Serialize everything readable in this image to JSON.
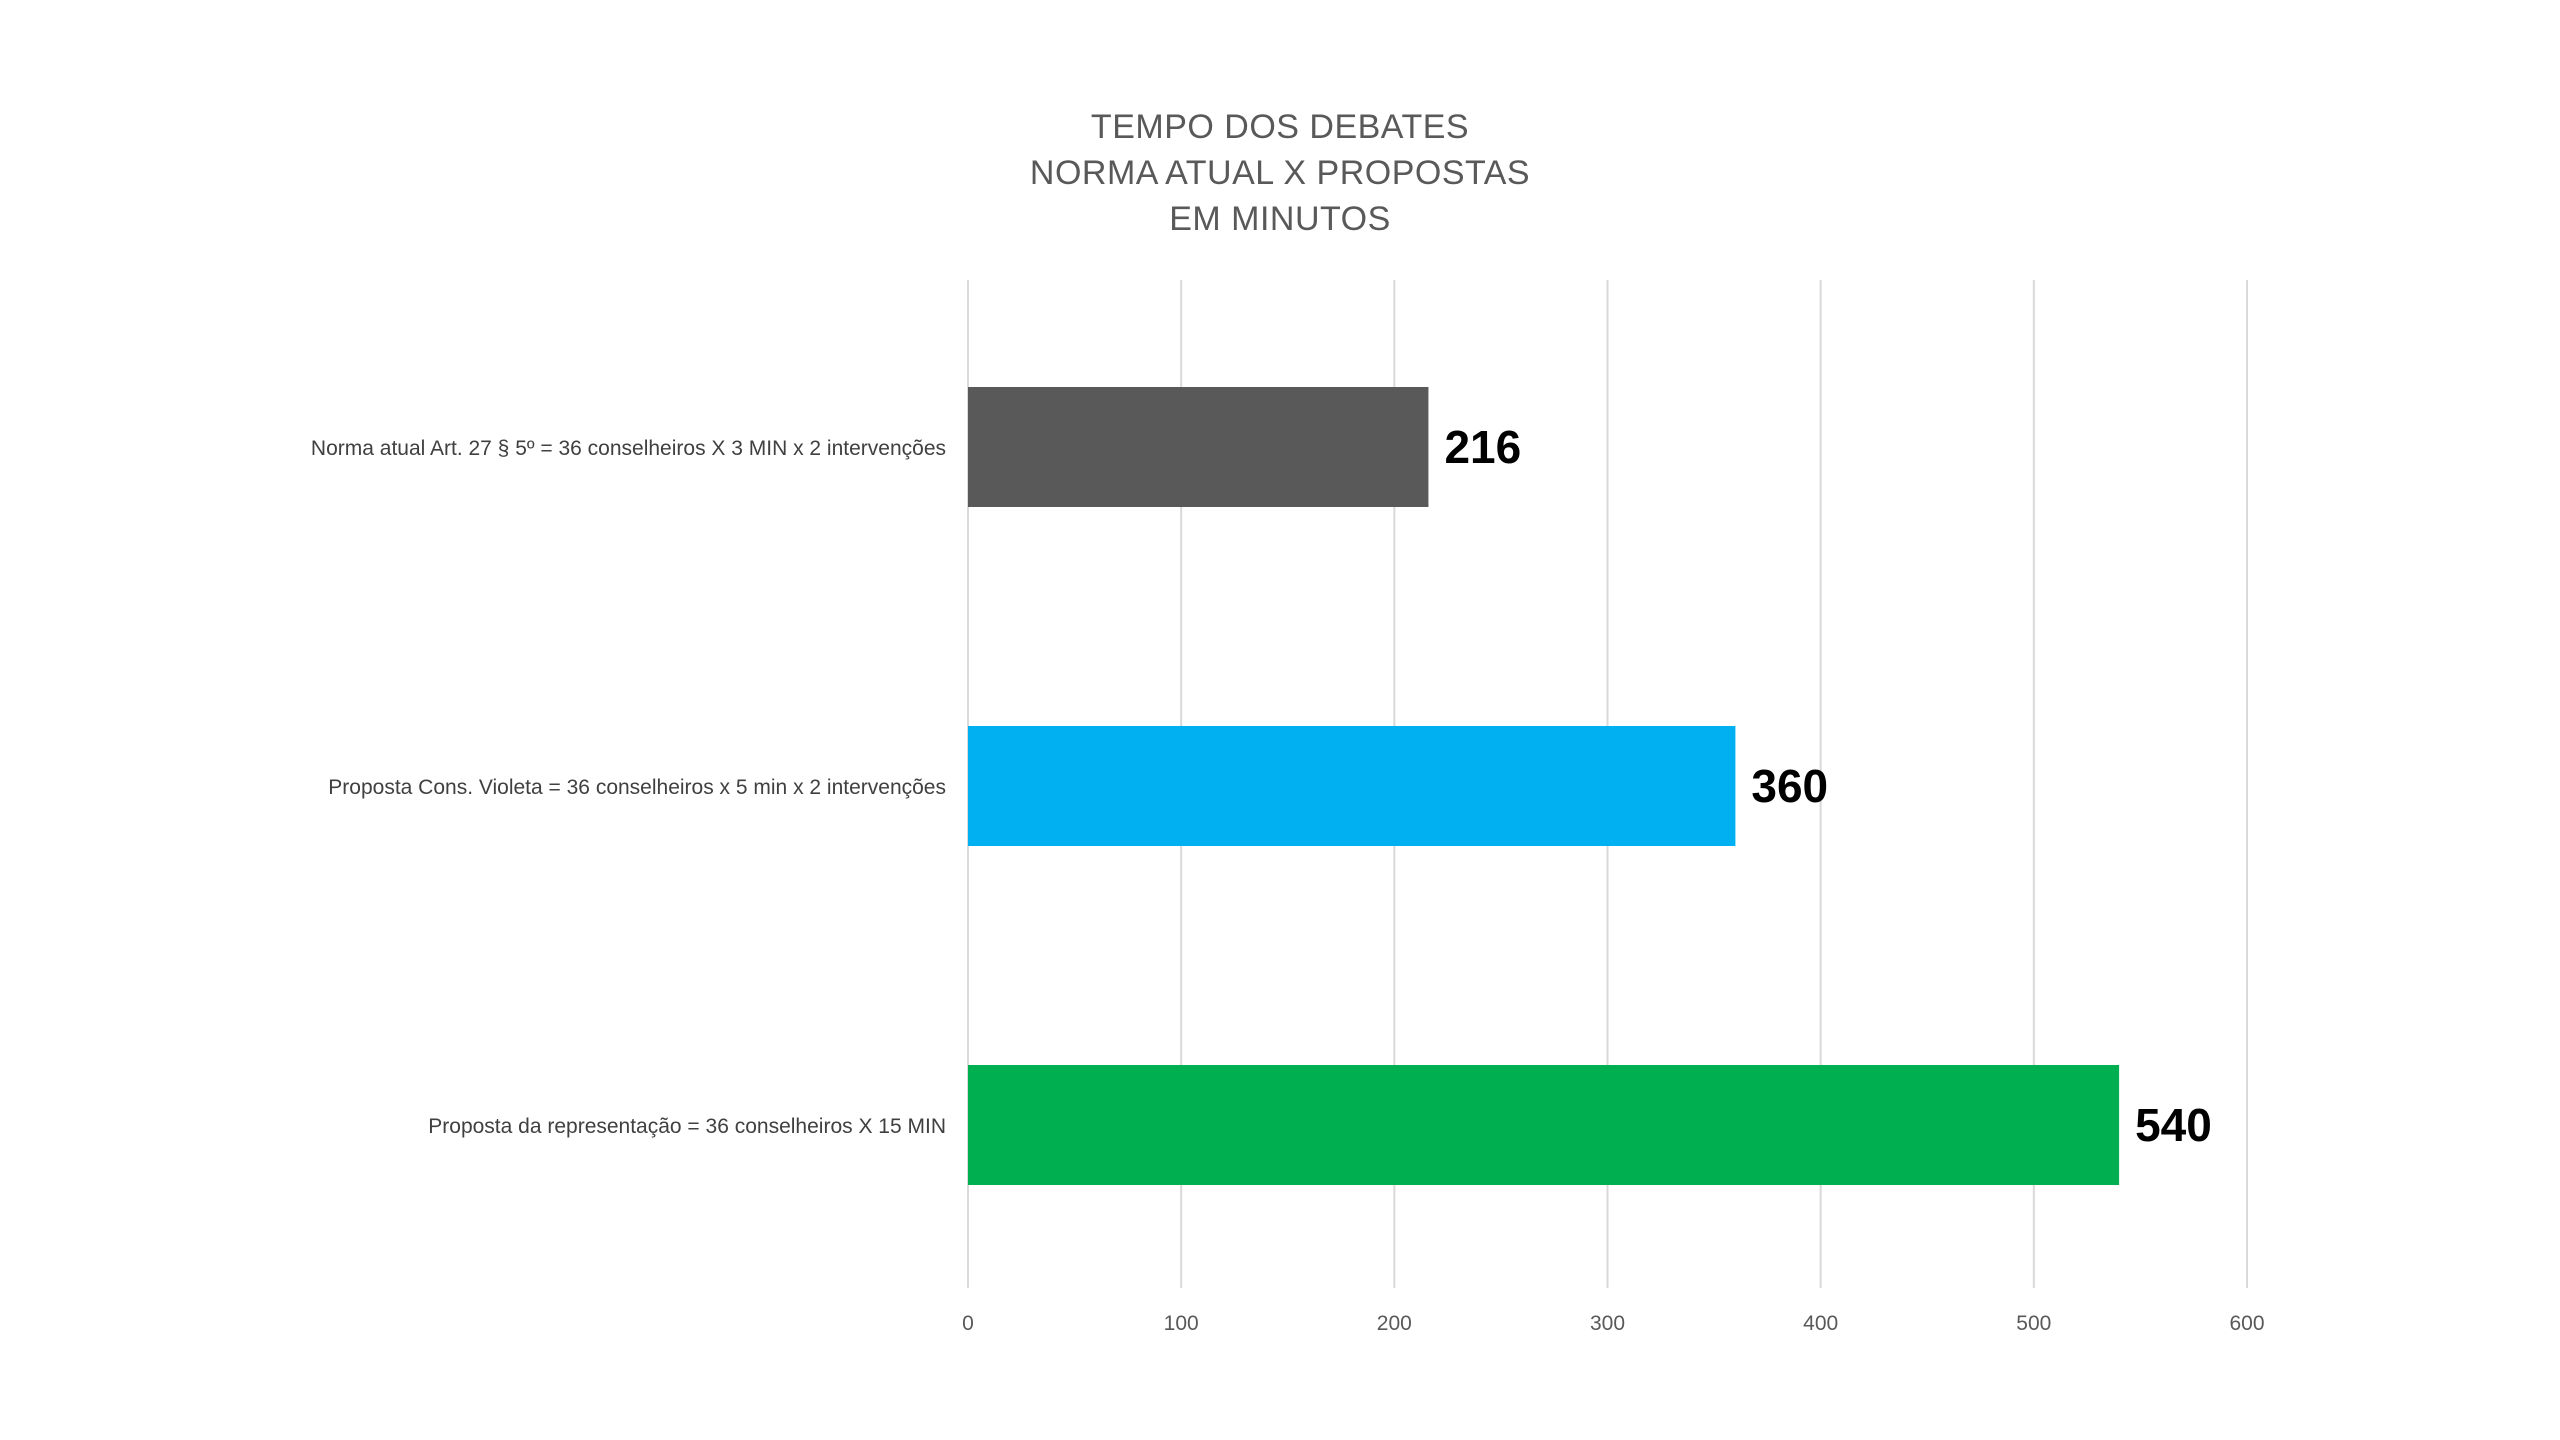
{
  "chart_data": {
    "type": "bar",
    "orientation": "horizontal",
    "title": [
      "TEMPO DOS DEBATES",
      "NORMA ATUAL X PROPOSTAS",
      "EM MINUTOS"
    ],
    "categories": [
      "Norma atual Art. 27 § 5º = 36 conselheiros X 3 MIN x 2 intervenções",
      "Proposta Cons. Violeta = 36 conselheiros x 5 min x 2 intervenções",
      "Proposta da representação = 36 conselheiros X 15 MIN"
    ],
    "values": [
      216,
      360,
      540
    ],
    "data_labels": [
      "216",
      "360",
      "540"
    ],
    "bar_colors": [
      "#595959",
      "#00b0f0",
      "#00b050"
    ],
    "xlim": [
      0,
      600
    ],
    "xticks": [
      "0",
      "100",
      "200",
      "300",
      "400",
      "500",
      "600"
    ],
    "grid": "vertical",
    "legend": "none",
    "xlabel": "",
    "ylabel": ""
  }
}
